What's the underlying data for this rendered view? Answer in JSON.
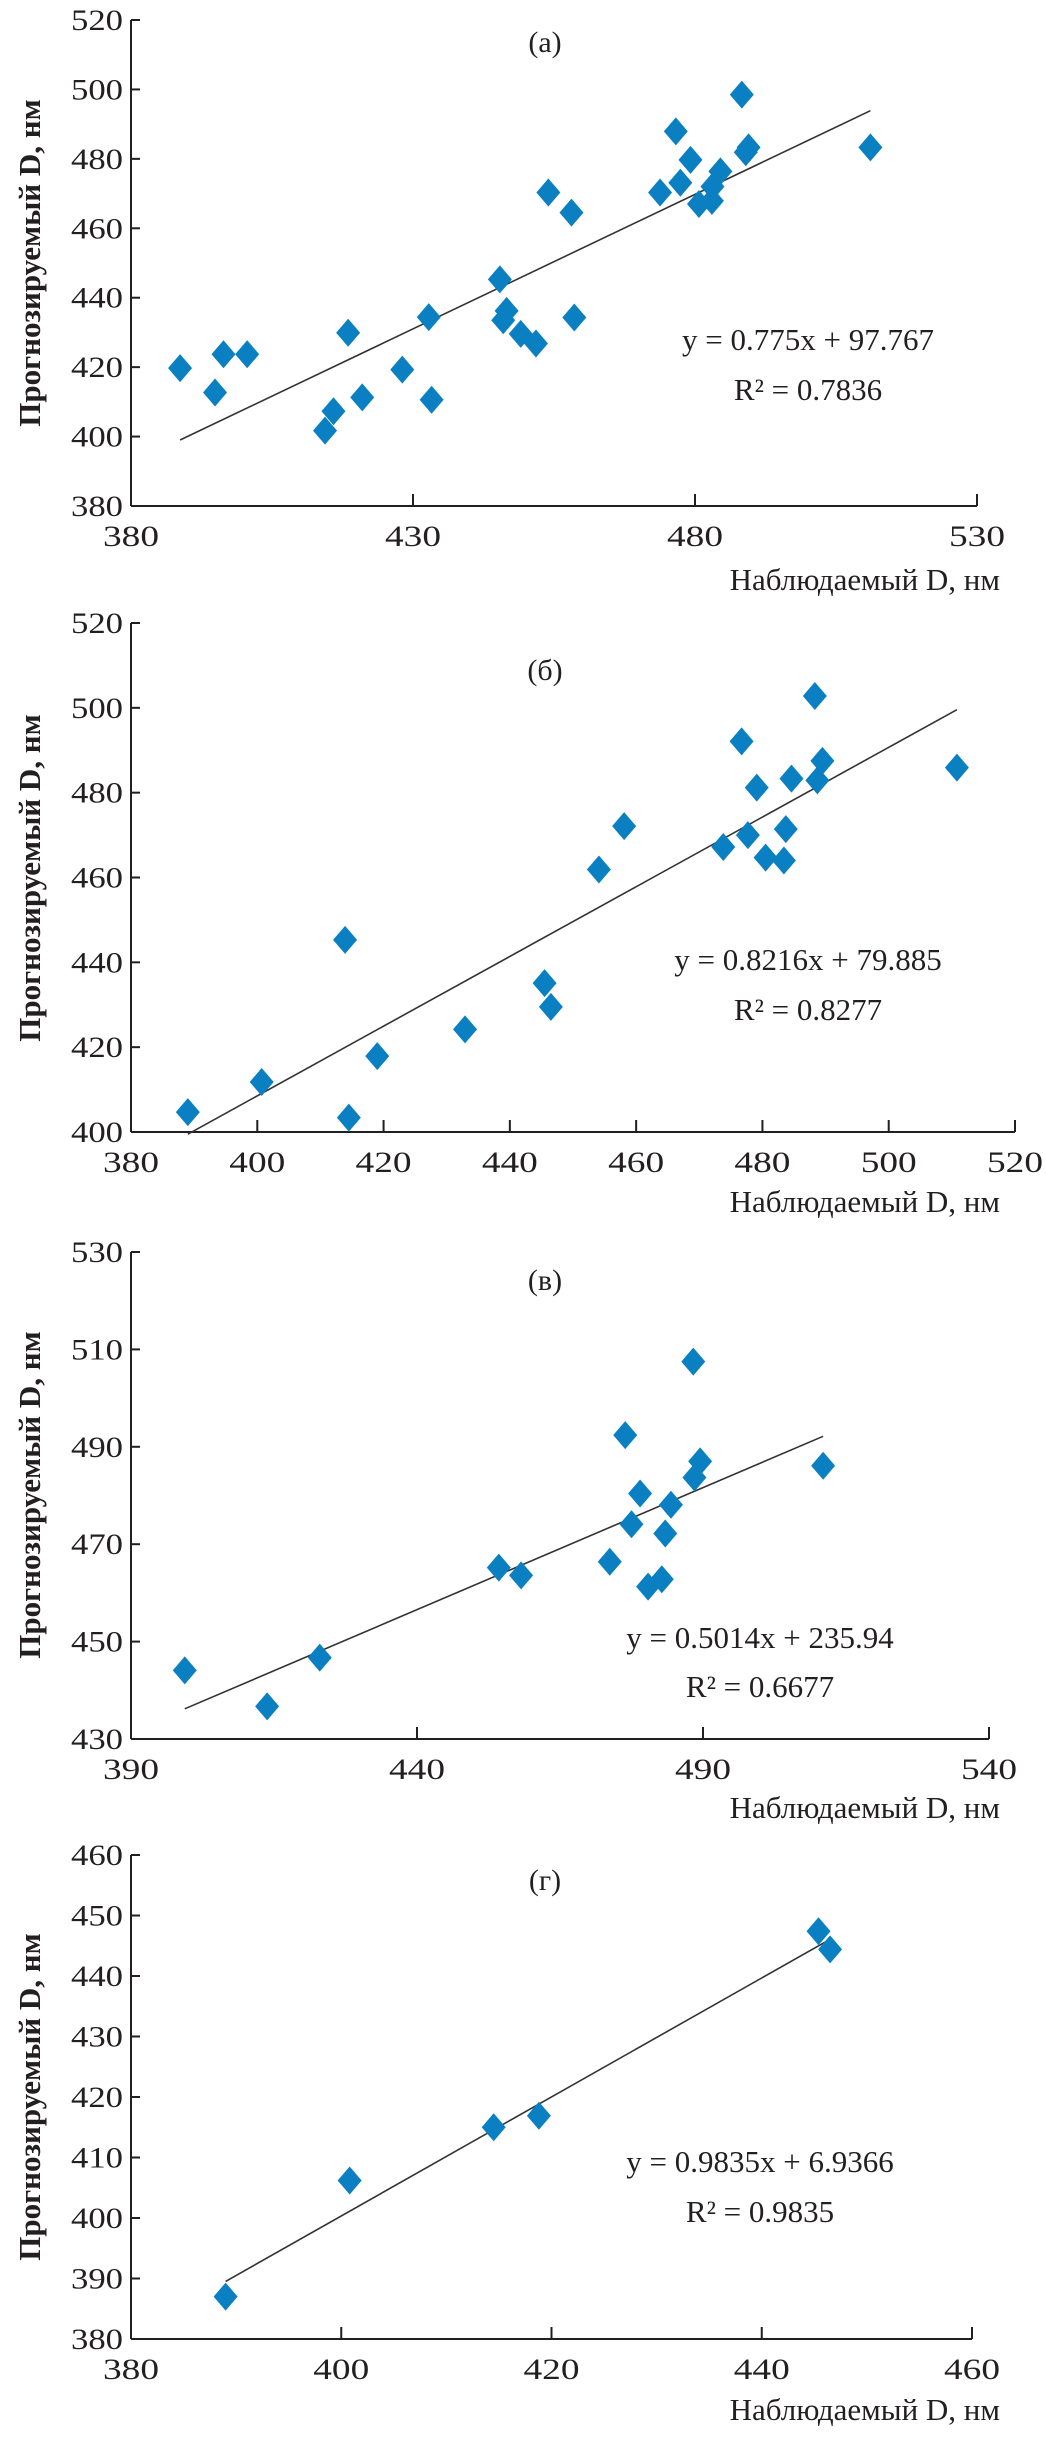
{
  "marker_color": "#0a80c2",
  "trendline_color": "#333333",
  "chart_data": [
    {
      "type": "scatter",
      "panel_label": "(а)",
      "xlabel": "Наблюдаемый D, нм",
      "ylabel": "Прогнозируемый D, нм",
      "xlim": [
        380,
        530
      ],
      "ylim": [
        380,
        520
      ],
      "xticks": [
        380,
        430,
        480,
        530
      ],
      "yticks": [
        380,
        400,
        420,
        440,
        460,
        480,
        500,
        520
      ],
      "grid": false,
      "points": [
        [
          388.7,
          419.7
        ],
        [
          394.9,
          412.7
        ],
        [
          396.4,
          423.7
        ],
        [
          400.6,
          423.7
        ],
        [
          414.4,
          401.7
        ],
        [
          415.9,
          407.3
        ],
        [
          418.5,
          429.9
        ],
        [
          421.0,
          411.3
        ],
        [
          428.1,
          419.3
        ],
        [
          432.8,
          434.4
        ],
        [
          433.3,
          410.6
        ],
        [
          445.4,
          445.3
        ],
        [
          446.0,
          433.5
        ],
        [
          446.6,
          436.2
        ],
        [
          449.1,
          429.6
        ],
        [
          451.8,
          426.8
        ],
        [
          454.0,
          470.3
        ],
        [
          458.1,
          464.5
        ],
        [
          458.6,
          434.3
        ],
        [
          473.8,
          470.3
        ],
        [
          476.6,
          487.9
        ],
        [
          477.4,
          473.1
        ],
        [
          479.2,
          479.7
        ],
        [
          480.7,
          467.0
        ],
        [
          483.0,
          467.9
        ],
        [
          483.1,
          472.0
        ],
        [
          484.5,
          476.4
        ],
        [
          488.3,
          498.5
        ],
        [
          489.0,
          481.9
        ],
        [
          489.5,
          483.3
        ],
        [
          511.1,
          483.3
        ]
      ],
      "trendline": {
        "slope": 0.775,
        "intercept": 97.767,
        "equation": "y = 0.775x + 97.767",
        "r_squared": "R² = 0.7836"
      }
    },
    {
      "type": "scatter",
      "panel_label": "(б)",
      "xlabel": "Наблюдаемый D, нм",
      "ylabel": "Прогнозируемый D, нм",
      "xlim": [
        380,
        520
      ],
      "ylim": [
        400,
        520
      ],
      "xticks": [
        380,
        400,
        420,
        440,
        460,
        480,
        500,
        520
      ],
      "yticks": [
        400,
        420,
        440,
        460,
        480,
        500,
        520
      ],
      "grid": false,
      "points": [
        [
          389.0,
          404.7
        ],
        [
          400.7,
          411.8
        ],
        [
          413.9,
          445.3
        ],
        [
          414.5,
          403.4
        ],
        [
          419.0,
          417.9
        ],
        [
          432.9,
          424.2
        ],
        [
          445.5,
          435.1
        ],
        [
          446.5,
          429.5
        ],
        [
          454.1,
          461.9
        ],
        [
          458.1,
          472.1
        ],
        [
          473.8,
          467.2
        ],
        [
          476.7,
          492.1
        ],
        [
          477.7,
          470.0
        ],
        [
          479.1,
          481.2
        ],
        [
          480.5,
          464.7
        ],
        [
          483.4,
          464.0
        ],
        [
          483.7,
          471.4
        ],
        [
          484.6,
          483.3
        ],
        [
          488.3,
          502.8
        ],
        [
          488.7,
          482.9
        ],
        [
          489.5,
          487.5
        ],
        [
          510.8,
          485.9
        ]
      ],
      "trendline": {
        "slope": 0.8216,
        "intercept": 79.885,
        "equation": "y = 0.8216x + 79.885",
        "r_squared": "R² = 0.8277"
      }
    },
    {
      "type": "scatter",
      "panel_label": "(в)",
      "xlabel": "Наблюдаемый D, нм",
      "ylabel": "Прогнозируемый D, нм",
      "xlim": [
        390,
        540
      ],
      "ylim": [
        430,
        530
      ],
      "xticks": [
        390,
        440,
        490,
        540
      ],
      "yticks": [
        430,
        450,
        470,
        490,
        510,
        530
      ],
      "grid": false,
      "points": [
        [
          399.4,
          444.1
        ],
        [
          413.8,
          436.7
        ],
        [
          423.0,
          446.7
        ],
        [
          454.3,
          465.2
        ],
        [
          458.2,
          463.6
        ],
        [
          473.7,
          466.4
        ],
        [
          476.4,
          492.4
        ],
        [
          477.5,
          474.1
        ],
        [
          479.0,
          480.4
        ],
        [
          480.4,
          461.3
        ],
        [
          482.8,
          462.8
        ],
        [
          483.4,
          472.2
        ],
        [
          484.4,
          478.1
        ],
        [
          488.3,
          507.5
        ],
        [
          488.5,
          483.7
        ],
        [
          489.5,
          487.0
        ],
        [
          511.0,
          486.1
        ]
      ],
      "trendline": {
        "slope": 0.5014,
        "intercept": 235.94,
        "equation": "y = 0.5014x + 235.94",
        "r_squared": "R² = 0.6677"
      }
    },
    {
      "type": "scatter",
      "panel_label": "(г)",
      "xlabel": "Наблюдаемый D, нм",
      "ylabel": "Прогнозируемый D, нм",
      "xlim": [
        380,
        460
      ],
      "ylim": [
        380,
        460
      ],
      "xticks": [
        380,
        400,
        420,
        440,
        460
      ],
      "yticks": [
        380,
        390,
        400,
        410,
        420,
        430,
        440,
        450,
        460
      ],
      "grid": false,
      "points": [
        [
          389.0,
          387.0
        ],
        [
          400.8,
          406.2
        ],
        [
          414.5,
          415.0
        ],
        [
          418.8,
          416.9
        ],
        [
          445.4,
          447.4
        ],
        [
          446.5,
          444.4
        ]
      ],
      "trendline": {
        "slope": 0.9835,
        "intercept": 6.9366,
        "equation": "y = 0.9835x + 6.9366",
        "r_squared": "R² = 0.9835"
      }
    }
  ]
}
